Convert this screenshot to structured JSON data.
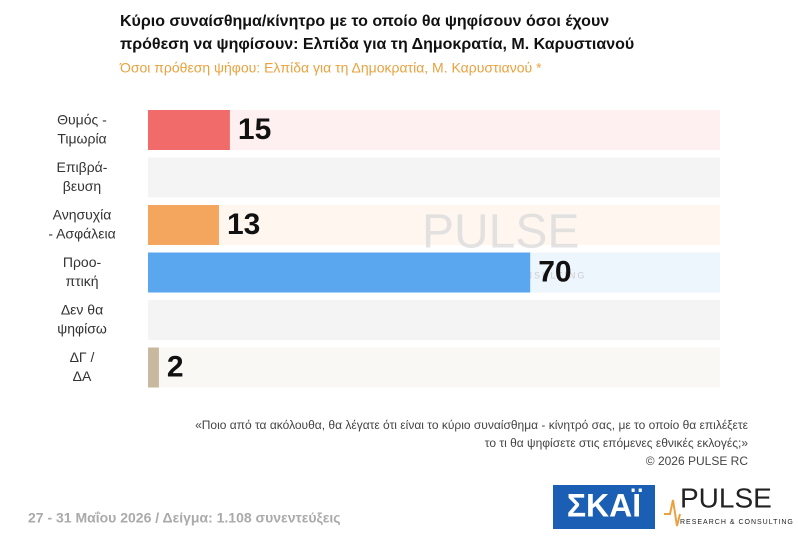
{
  "chart_data": {
    "type": "bar",
    "orientation": "horizontal",
    "title": [
      "Κύριο συναίσθημα/κίνητρο με το οποίο θα ψηφίσουν όσοι έχουν",
      "πρόθεση να ψηφίσουν: Ελπίδα για τη Δημοκρατία, Μ. Καρυστιανού"
    ],
    "subtitle": "Όσοι πρόθεση ψήφου: Ελπίδα για τη Δημοκρατία, Μ. Καρυστιανού *",
    "categories": [
      [
        "Θυμός -",
        "Τιμωρία"
      ],
      [
        "Επιβρά-",
        "βευση"
      ],
      [
        "Ανησυχία",
        "- Ασφάλεια"
      ],
      [
        "Προο-",
        "πτική"
      ],
      [
        "Δεν θα",
        "ψηφίσω"
      ],
      [
        "ΔΓ /",
        "ΔΑ"
      ]
    ],
    "values": [
      15,
      null,
      13,
      70,
      null,
      2
    ],
    "colors": [
      "#f26b6b",
      null,
      "#f5a65e",
      "#5aa7ef",
      null,
      "#c8b89e"
    ],
    "xlim": [
      0,
      100
    ],
    "watermark": [
      "PULSE",
      "RESEARCH & CONSULTING"
    ],
    "question": [
      "«Ποιο από τα ακόλουθα, θα λέγατε ότι είναι το κύριο συναίσθημα - κίνητρό σας, με το οποίο θα επιλέξετε",
      "το τι θα ψηφίσετε στις επόμενες εθνικές εκλογές;»"
    ],
    "copyright": "©  2026  PULSE RC",
    "footer": "27 - 31  Μαΐου 2026  /  Δείγμα:  1.108 συνεντεύξεις",
    "logos": {
      "skai": "ΣΚΑΪ",
      "pulse": "PULSE",
      "pulse_sub": "RESEARCH & CONSULTING"
    }
  }
}
